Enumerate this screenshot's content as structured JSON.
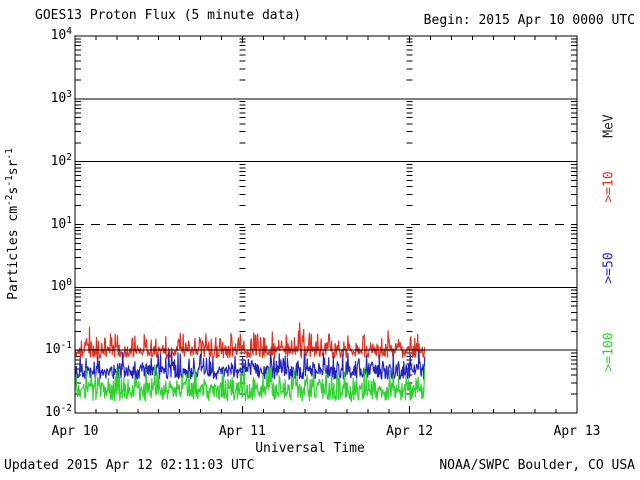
{
  "chart": {
    "title": "GOES13 Proton Flux (5 minute data)",
    "begin_label": "Begin: 2015 Apr 10 0000 UTC",
    "updated_label": "Updated 2015 Apr 12 02:11:03 UTC",
    "source_label": "NOAA/SWPC Boulder, CO USA",
    "x_axis_label": "Universal Time",
    "unit_label": "MeV",
    "y_axis_label_parts": [
      {
        "text": "Particles cm",
        "sup": "-2"
      },
      {
        "text": "s",
        "sup": "-1"
      },
      {
        "text": "sr",
        "sup": "-1"
      }
    ]
  },
  "chart_data": {
    "type": "line",
    "title": "GOES13 Proton Flux (5 minute data)",
    "begin": "2015 Apr 10 0000 UTC",
    "updated": "2015 Apr 12 02:11:03 UTC",
    "source": "NOAA/SWPC Boulder, CO USA",
    "x_axis": {
      "label": "Universal Time",
      "ticks": [
        "Apr 10",
        "Apr 11",
        "Apr 12",
        "Apr 13"
      ],
      "range_days": 3,
      "minor_tick_hours": 3
    },
    "y_axis": {
      "scale": "log",
      "label": "Particles cm^-2 s^-1 sr^-1",
      "unit": "MeV",
      "range": [
        0.01,
        10000
      ],
      "tick_exponents": [
        4,
        3,
        2,
        1,
        0,
        -1,
        -2
      ]
    },
    "gridlines": {
      "solid_exponents": [
        3,
        2,
        0,
        -1
      ],
      "dashed_exponents": [
        1
      ]
    },
    "data_end_day": 2.09,
    "points_per_day": 288,
    "series": [
      {
        "name": "Protons >=10 MeV",
        "legend": ">=10",
        "color": "#e03020",
        "median_flux": 0.1,
        "typical_range": [
          0.07,
          0.2
        ],
        "peak_flux": 0.45,
        "synthesis": {
          "log_center": -1.03,
          "log_jitter": 0.1,
          "spike_prob": 0.35,
          "spike_log": 0.3,
          "rare_prob": 0.015,
          "rare_log": 0.3,
          "log_min": -1.16,
          "log_max": -0.35
        }
      },
      {
        "name": "Protons >=50 MeV",
        "legend": ">=50",
        "color": "#2222c0",
        "median_flux": 0.045,
        "typical_range": [
          0.03,
          0.09
        ],
        "peak_flux": 0.12,
        "synthesis": {
          "log_center": -1.35,
          "log_jitter": 0.12,
          "spike_prob": 0.3,
          "spike_log": 0.26,
          "rare_prob": 0,
          "rare_log": 0,
          "log_min": -1.54,
          "log_max": -0.98
        }
      },
      {
        "name": "Protons >=100 MeV",
        "legend": ">=100",
        "color": "#2ed22e",
        "median_flux": 0.024,
        "typical_range": [
          0.013,
          0.05
        ],
        "peak_flux": 0.06,
        "synthesis": {
          "log_center": -1.66,
          "log_jitter": 0.15,
          "spike_prob": 0.3,
          "spike_log": 0.3,
          "rare_prob": 0,
          "rare_log": 0,
          "log_min": -1.93,
          "log_max": -1.22
        }
      }
    ]
  }
}
